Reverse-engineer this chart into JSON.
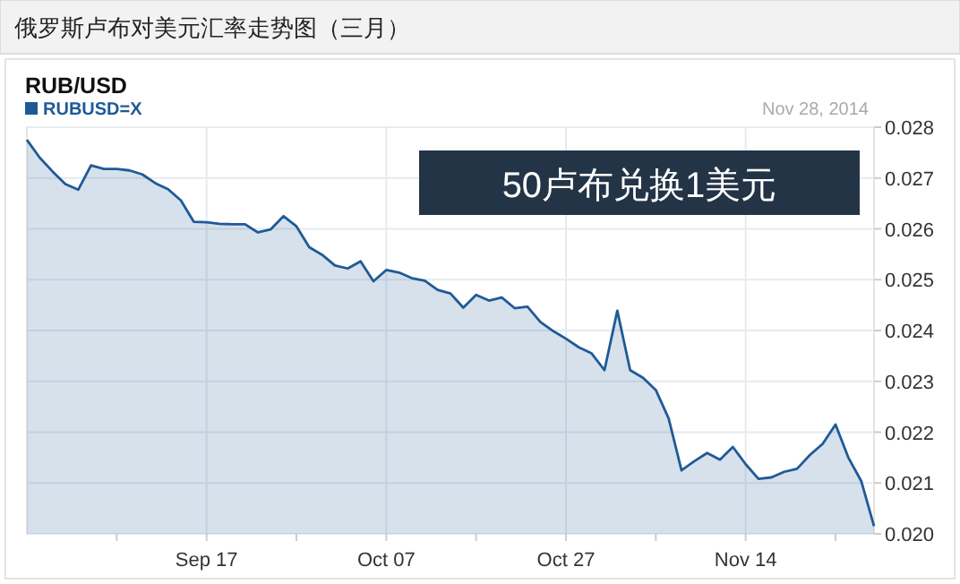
{
  "chart_data": {
    "type": "area",
    "title": "俄罗斯卢布对美元汇率走势图（三月）",
    "subtitle": "RUB/USD",
    "legend": "top left",
    "grid": true,
    "marker": "none",
    "line_style": "solid",
    "annotations": [
      "Nov 28, 2014",
      "50卢布兑换1美元"
    ],
    "categories": [
      null,
      null,
      null,
      null,
      null,
      null,
      null,
      null,
      null,
      null,
      null,
      null,
      null,
      null,
      "Sep 17",
      null,
      null,
      null,
      null,
      null,
      null,
      null,
      null,
      null,
      null,
      null,
      null,
      null,
      "Oct 07",
      null,
      null,
      null,
      null,
      null,
      null,
      null,
      null,
      null,
      null,
      null,
      null,
      null,
      "Oct 27",
      null,
      null,
      null,
      null,
      null,
      null,
      null,
      null,
      null,
      null,
      null,
      null,
      null,
      "Nov 14",
      null,
      null,
      null,
      null,
      null,
      null,
      null,
      null,
      null,
      null
    ],
    "ylim": [
      0.02,
      0.028
    ],
    "yticks": [
      {
        "value": 0.02,
        "label": "0.020"
      },
      0.021,
      0.022,
      0.023,
      0.024,
      0.025,
      0.026,
      0.027,
      0.028
    ],
    "series": [
      {
        "name": "RUBUSD=X",
        "color": "#1f5a96",
        "values": [
          0.02775,
          0.0274,
          0.02713,
          0.02688,
          0.02677,
          0.02725,
          0.02718,
          0.02718,
          0.02715,
          0.02707,
          0.0269,
          0.02678,
          0.02656,
          0.02614,
          0.02613,
          0.0261,
          0.02609,
          0.02609,
          0.02593,
          0.02599,
          0.02625,
          0.02605,
          0.02564,
          0.02549,
          0.02528,
          0.02522,
          0.02536,
          0.02497,
          0.02519,
          0.02514,
          0.02503,
          0.02498,
          0.0248,
          0.02473,
          0.02445,
          0.0247,
          0.02459,
          0.02465,
          0.02444,
          0.02447,
          0.02417,
          0.02399,
          0.02384,
          0.02367,
          0.02355,
          0.02322,
          0.02439,
          0.02322,
          0.02307,
          0.02283,
          0.02227,
          0.02125,
          0.02143,
          0.02159,
          0.02146,
          0.02171,
          0.02137,
          0.02108,
          0.02111,
          0.02122,
          0.02128,
          0.02155,
          0.02177,
          0.02215,
          0.0215,
          0.02104,
          0.02015
        ]
      }
    ]
  }
}
